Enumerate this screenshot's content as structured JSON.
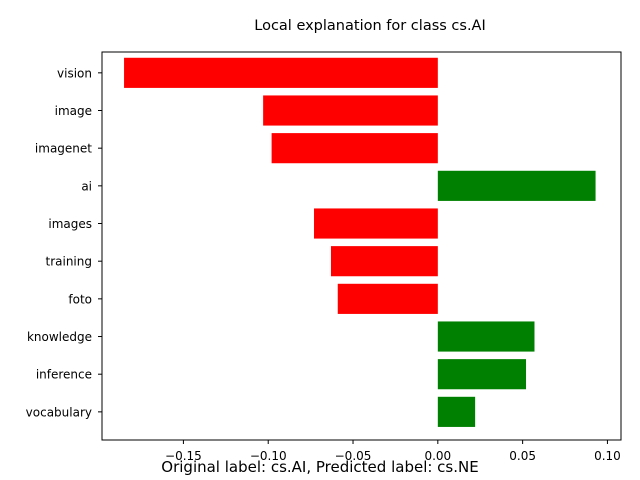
{
  "chart_data": {
    "type": "bar",
    "orientation": "horizontal",
    "title": "Local explanation for class cs.AI",
    "xlabel": "",
    "ylabel": "",
    "categories": [
      "vision",
      "image",
      "imagenet",
      "ai",
      "images",
      "training",
      "foto",
      "knowledge",
      "inference",
      "vocabulary"
    ],
    "values": [
      -0.185,
      -0.103,
      -0.098,
      0.093,
      -0.073,
      -0.063,
      -0.059,
      0.057,
      0.052,
      0.022
    ],
    "xlim": [
      -0.198,
      0.108
    ],
    "xticks": [
      -0.15,
      -0.1,
      -0.05,
      0.0,
      0.05,
      0.1
    ],
    "xtick_labels": [
      "−0.15",
      "−0.10",
      "−0.05",
      "0.00",
      "0.05",
      "0.10"
    ],
    "colors": {
      "positive": "#008000",
      "negative": "#ff0000"
    },
    "grid": false,
    "legend": "none"
  },
  "caption": "Original label: cs.AI, Predicted label: cs.NE"
}
